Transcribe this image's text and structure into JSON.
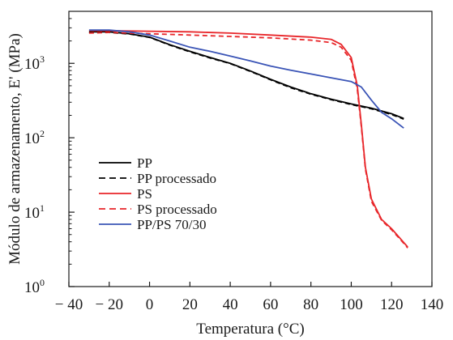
{
  "chart_data": {
    "type": "line",
    "title": "",
    "xlabel": "Temperatura (°C)",
    "ylabel": "Módulo de armazenamento, E' (MPa)",
    "xlim": [
      -40,
      140
    ],
    "ylim": [
      1,
      5000
    ],
    "y_scale": "log",
    "x_ticks": [
      -40,
      -20,
      0,
      20,
      40,
      60,
      80,
      100,
      120,
      140
    ],
    "x_tick_labels": [
      "− 40",
      "− 20",
      "0",
      "20",
      "40",
      "60",
      "80",
      "100",
      "120",
      "140"
    ],
    "y_ticks": [
      {
        "value": 1,
        "base": "10",
        "exp": "0"
      },
      {
        "value": 10,
        "base": "10",
        "exp": "1"
      },
      {
        "value": 100,
        "base": "10",
        "exp": "2"
      },
      {
        "value": 1000,
        "base": "10",
        "exp": "3"
      }
    ],
    "grid": false,
    "legend_position": "lower-left",
    "series": [
      {
        "name": "PP",
        "color": "#000000",
        "dash": "solid",
        "points": [
          [
            -30,
            2650
          ],
          [
            -20,
            2650
          ],
          [
            -10,
            2500
          ],
          [
            0,
            2250
          ],
          [
            10,
            1780
          ],
          [
            20,
            1450
          ],
          [
            30,
            1200
          ],
          [
            40,
            1000
          ],
          [
            50,
            790
          ],
          [
            60,
            610
          ],
          [
            70,
            480
          ],
          [
            80,
            390
          ],
          [
            90,
            330
          ],
          [
            100,
            285
          ],
          [
            110,
            250
          ],
          [
            120,
            210
          ],
          [
            126,
            182
          ]
        ]
      },
      {
        "name": "PP processado",
        "color": "#000000",
        "dash": "dashed",
        "points": [
          [
            -30,
            2600
          ],
          [
            -20,
            2600
          ],
          [
            -10,
            2480
          ],
          [
            0,
            2230
          ],
          [
            10,
            1760
          ],
          [
            20,
            1430
          ],
          [
            30,
            1180
          ],
          [
            40,
            990
          ],
          [
            50,
            780
          ],
          [
            60,
            600
          ],
          [
            70,
            470
          ],
          [
            80,
            385
          ],
          [
            90,
            325
          ],
          [
            100,
            280
          ],
          [
            110,
            245
          ],
          [
            120,
            205
          ],
          [
            126,
            178
          ]
        ]
      },
      {
        "name": "PS",
        "color": "#e8262a",
        "dash": "solid",
        "points": [
          [
            -30,
            2750
          ],
          [
            -20,
            2750
          ],
          [
            0,
            2700
          ],
          [
            20,
            2650
          ],
          [
            40,
            2550
          ],
          [
            60,
            2400
          ],
          [
            80,
            2250
          ],
          [
            90,
            2100
          ],
          [
            95,
            1800
          ],
          [
            100,
            1200
          ],
          [
            103,
            500
          ],
          [
            105,
            150
          ],
          [
            107,
            40
          ],
          [
            110,
            15
          ],
          [
            115,
            8
          ],
          [
            120,
            6
          ],
          [
            125,
            4.2
          ],
          [
            128,
            3.4
          ]
        ]
      },
      {
        "name": "PS processado",
        "color": "#e8262a",
        "dash": "dashed",
        "points": [
          [
            -30,
            2550
          ],
          [
            -20,
            2600
          ],
          [
            0,
            2500
          ],
          [
            20,
            2400
          ],
          [
            40,
            2300
          ],
          [
            60,
            2200
          ],
          [
            80,
            2050
          ],
          [
            90,
            1900
          ],
          [
            95,
            1650
          ],
          [
            100,
            1100
          ],
          [
            103,
            450
          ],
          [
            105,
            140
          ],
          [
            107,
            38
          ],
          [
            110,
            14
          ],
          [
            115,
            7.8
          ],
          [
            120,
            5.8
          ],
          [
            125,
            4.1
          ],
          [
            128,
            3.3
          ]
        ]
      },
      {
        "name": "PP/PS 70/30",
        "color": "#3a54b6",
        "dash": "solid",
        "points": [
          [
            -30,
            2800
          ],
          [
            -20,
            2800
          ],
          [
            -10,
            2650
          ],
          [
            0,
            2400
          ],
          [
            10,
            2000
          ],
          [
            20,
            1650
          ],
          [
            30,
            1450
          ],
          [
            40,
            1250
          ],
          [
            50,
            1080
          ],
          [
            60,
            920
          ],
          [
            70,
            810
          ],
          [
            80,
            720
          ],
          [
            90,
            640
          ],
          [
            100,
            570
          ],
          [
            105,
            480
          ],
          [
            110,
            320
          ],
          [
            115,
            220
          ],
          [
            120,
            180
          ],
          [
            126,
            135
          ]
        ]
      }
    ]
  }
}
